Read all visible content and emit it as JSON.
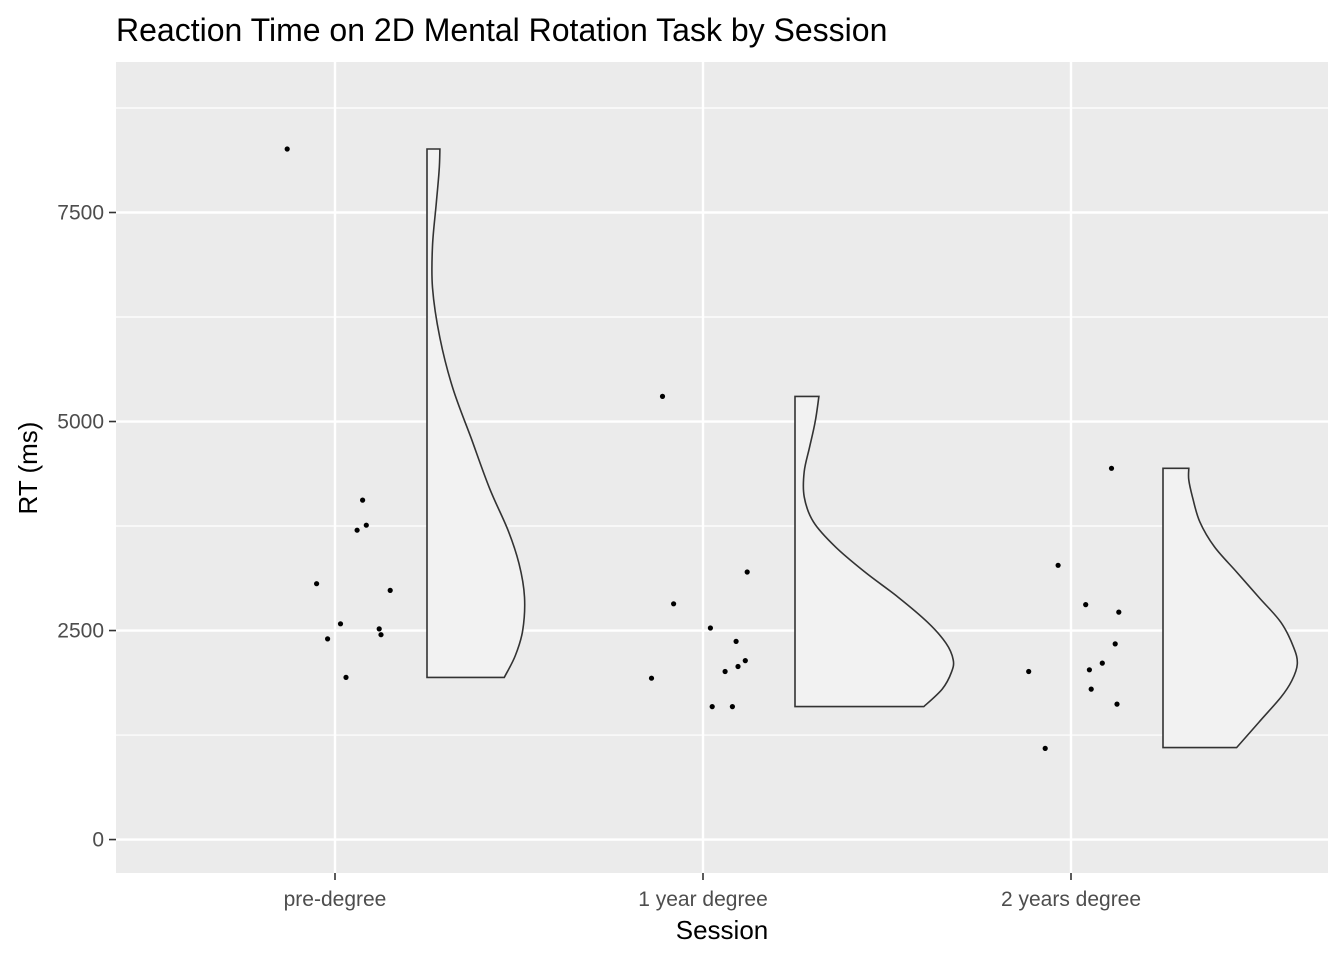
{
  "chart_data": {
    "type": "raincloud",
    "title": "Reaction Time on 2D Mental Rotation Task by Session",
    "xlabel": "Session",
    "ylabel": "RT (ms)",
    "categories": [
      "pre-degree",
      "1 year degree",
      "2 years degree"
    ],
    "ylim": [
      -400,
      9300
    ],
    "yticks": [
      0,
      2500,
      5000,
      7500
    ],
    "grid": true,
    "legend": "none",
    "colors": {
      "panel": "#ebebeb",
      "grid": "#ffffff",
      "point": "#000000",
      "violin_fill": "#f2f2f2",
      "violin_line": "#333333"
    },
    "points": [
      {
        "session": "pre-degree",
        "x": -0.13,
        "y": 8260
      },
      {
        "session": "pre-degree",
        "x": -0.05,
        "y": 3060
      },
      {
        "session": "pre-degree",
        "x": -0.02,
        "y": 2400
      },
      {
        "session": "pre-degree",
        "x": 0.015,
        "y": 2580
      },
      {
        "session": "pre-degree",
        "x": 0.03,
        "y": 1940
      },
      {
        "session": "pre-degree",
        "x": 0.06,
        "y": 3700
      },
      {
        "session": "pre-degree",
        "x": 0.075,
        "y": 4060
      },
      {
        "session": "pre-degree",
        "x": 0.085,
        "y": 3760
      },
      {
        "session": "pre-degree",
        "x": 0.12,
        "y": 2520
      },
      {
        "session": "pre-degree",
        "x": 0.125,
        "y": 2450
      },
      {
        "session": "pre-degree",
        "x": 0.15,
        "y": 2980
      },
      {
        "session": "1 year degree",
        "x": -0.14,
        "y": 1930
      },
      {
        "session": "1 year degree",
        "x": -0.11,
        "y": 5300
      },
      {
        "session": "1 year degree",
        "x": -0.08,
        "y": 2820
      },
      {
        "session": "1 year degree",
        "x": 0.02,
        "y": 2530
      },
      {
        "session": "1 year degree",
        "x": 0.025,
        "y": 1590
      },
      {
        "session": "1 year degree",
        "x": 0.06,
        "y": 2010
      },
      {
        "session": "1 year degree",
        "x": 0.08,
        "y": 1590
      },
      {
        "session": "1 year degree",
        "x": 0.09,
        "y": 2370
      },
      {
        "session": "1 year degree",
        "x": 0.095,
        "y": 2070
      },
      {
        "session": "1 year degree",
        "x": 0.115,
        "y": 2140
      },
      {
        "session": "1 year degree",
        "x": 0.12,
        "y": 3200
      },
      {
        "session": "2 years degree",
        "x": -0.115,
        "y": 2010
      },
      {
        "session": "2 years degree",
        "x": -0.07,
        "y": 1090
      },
      {
        "session": "2 years degree",
        "x": -0.035,
        "y": 3280
      },
      {
        "session": "2 years degree",
        "x": 0.04,
        "y": 2810
      },
      {
        "session": "2 years degree",
        "x": 0.05,
        "y": 2030
      },
      {
        "session": "2 years degree",
        "x": 0.055,
        "y": 1800
      },
      {
        "session": "2 years degree",
        "x": 0.085,
        "y": 2110
      },
      {
        "session": "2 years degree",
        "x": 0.11,
        "y": 4440
      },
      {
        "session": "2 years degree",
        "x": 0.12,
        "y": 2340
      },
      {
        "session": "2 years degree",
        "x": 0.125,
        "y": 1620
      },
      {
        "session": "2 years degree",
        "x": 0.13,
        "y": 2720
      }
    ],
    "violins": [
      {
        "session": "pre-degree",
        "profile": [
          [
            1940,
            0.21
          ],
          [
            2200,
            0.24
          ],
          [
            2500,
            0.26
          ],
          [
            2900,
            0.265
          ],
          [
            3300,
            0.25
          ],
          [
            3700,
            0.22
          ],
          [
            4200,
            0.17
          ],
          [
            4800,
            0.12
          ],
          [
            5400,
            0.07
          ],
          [
            6000,
            0.035
          ],
          [
            6600,
            0.015
          ],
          [
            7100,
            0.015
          ],
          [
            7600,
            0.025
          ],
          [
            8000,
            0.033
          ],
          [
            8260,
            0.035
          ]
        ]
      },
      {
        "session": "1 year degree",
        "profile": [
          [
            1590,
            0.35
          ],
          [
            1800,
            0.4
          ],
          [
            2000,
            0.425
          ],
          [
            2150,
            0.43
          ],
          [
            2350,
            0.41
          ],
          [
            2600,
            0.36
          ],
          [
            2900,
            0.28
          ],
          [
            3200,
            0.19
          ],
          [
            3500,
            0.11
          ],
          [
            3800,
            0.05
          ],
          [
            4100,
            0.025
          ],
          [
            4400,
            0.025
          ],
          [
            4700,
            0.04
          ],
          [
            5000,
            0.055
          ],
          [
            5300,
            0.065
          ]
        ]
      },
      {
        "session": "2 years degree",
        "profile": [
          [
            1100,
            0.2
          ],
          [
            1400,
            0.26
          ],
          [
            1700,
            0.32
          ],
          [
            1900,
            0.35
          ],
          [
            2100,
            0.365
          ],
          [
            2300,
            0.355
          ],
          [
            2600,
            0.32
          ],
          [
            2900,
            0.26
          ],
          [
            3200,
            0.2
          ],
          [
            3500,
            0.14
          ],
          [
            3800,
            0.1
          ],
          [
            4100,
            0.08
          ],
          [
            4300,
            0.07
          ],
          [
            4440,
            0.07
          ]
        ]
      }
    ]
  }
}
